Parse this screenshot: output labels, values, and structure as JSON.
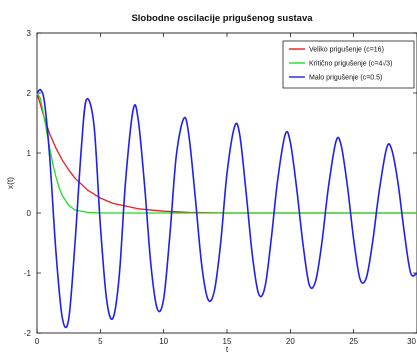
{
  "chart_data": {
    "type": "line",
    "title": "Slobodne oscilacije prigušenog sustava",
    "xlabel": "t",
    "ylabel": "x(t)",
    "xlim": [
      0,
      30
    ],
    "ylim": [
      -2,
      3
    ],
    "xticks": [
      0,
      5,
      10,
      15,
      20,
      25,
      30
    ],
    "yticks": [
      -2,
      -1,
      0,
      1,
      2,
      3
    ],
    "grid": false,
    "legend_position": "top-right",
    "series": [
      {
        "name": "Veliko prigušenje (c=16)",
        "color": "#e82020",
        "x": [
          0,
          0.5,
          1,
          1.5,
          2,
          2.5,
          3,
          4,
          5,
          6,
          8,
          10,
          12,
          15,
          20,
          25,
          30
        ],
        "y": [
          2.0,
          1.64,
          1.32,
          1.08,
          0.88,
          0.72,
          0.58,
          0.38,
          0.25,
          0.16,
          0.07,
          0.03,
          0.01,
          0.0,
          0.0,
          0.0,
          0.0
        ]
      },
      {
        "name": "Kritično prigušenje (c=4√3)",
        "color": "#22dd22",
        "x": [
          0,
          0.25,
          0.5,
          0.75,
          1,
          1.25,
          1.5,
          1.75,
          2,
          2.5,
          3,
          4,
          5,
          6,
          10,
          20,
          30
        ],
        "y": [
          2.0,
          1.92,
          1.67,
          1.37,
          1.08,
          0.82,
          0.6,
          0.42,
          0.29,
          0.13,
          0.05,
          0.01,
          0.0,
          0.0,
          0.0,
          0.0,
          0.0
        ]
      },
      {
        "name": "Malo prigušenje (c=0.5)",
        "color": "#2020ee",
        "x": [
          0,
          0.3,
          0.6,
          1.0,
          1.5,
          2.0,
          2.5,
          3.0,
          3.5,
          3.9,
          4.5,
          5.0,
          5.5,
          6.0,
          6.5,
          7.0,
          7.6,
          8.0,
          8.5,
          9.0,
          9.5,
          10.0,
          10.5,
          11.0,
          11.6,
          12.0,
          12.5,
          13.0,
          13.5,
          14.0,
          14.5,
          15.0,
          15.6,
          16.0,
          16.5,
          17.0,
          17.5,
          18.0,
          18.5,
          19.0,
          19.6,
          20.0,
          20.5,
          21.0,
          21.5,
          22.0,
          22.5,
          23.0,
          23.6,
          24.0,
          24.5,
          25.0,
          25.5,
          26.0,
          26.5,
          27.0,
          27.6,
          28.0,
          28.5,
          29.0,
          29.5,
          30.0
        ],
        "y": [
          2.0,
          2.05,
          1.83,
          0.94,
          -0.66,
          -1.75,
          -1.77,
          -0.5,
          1.08,
          1.89,
          1.46,
          -0.2,
          -1.45,
          -1.75,
          -1.03,
          0.55,
          1.73,
          1.54,
          0.44,
          -0.88,
          -1.6,
          -1.43,
          -0.34,
          0.96,
          1.58,
          1.28,
          0.25,
          -0.86,
          -1.44,
          -1.3,
          -0.5,
          0.66,
          1.44,
          1.31,
          0.36,
          -0.7,
          -1.35,
          -1.23,
          -0.42,
          0.55,
          1.31,
          1.18,
          0.41,
          -0.52,
          -1.2,
          -1.13,
          -0.48,
          0.42,
          1.19,
          1.14,
          0.46,
          -0.44,
          -1.1,
          -1.08,
          -0.48,
          0.34,
          1.08,
          1.06,
          0.5,
          -0.33,
          -1.0,
          -1.0
        ]
      }
    ]
  }
}
